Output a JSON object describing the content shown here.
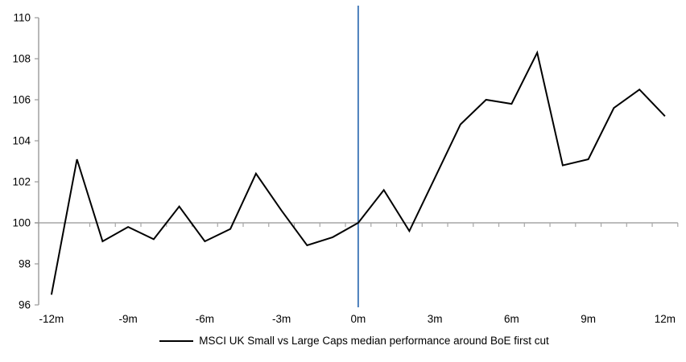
{
  "chart_data": {
    "type": "line",
    "title": "",
    "xlabel": "",
    "ylabel": "",
    "x_months": [
      -12,
      -11,
      -10,
      -9,
      -8,
      -7,
      -6,
      -5,
      -4,
      -3,
      -2,
      -1,
      0,
      1,
      2,
      3,
      4,
      5,
      6,
      7,
      8,
      9,
      10,
      11,
      12
    ],
    "series": [
      {
        "name": "MSCI UK Small vs Large Caps median performance around BoE first cut",
        "values": [
          96.5,
          103.1,
          99.1,
          99.8,
          99.2,
          100.8,
          99.1,
          99.7,
          102.4,
          100.6,
          98.9,
          99.3,
          100.0,
          101.6,
          99.6,
          102.2,
          104.8,
          106.0,
          105.8,
          108.3,
          102.8,
          103.1,
          105.6,
          106.5,
          105.2
        ]
      }
    ],
    "ylim": [
      96,
      110
    ],
    "yticks": [
      96,
      98,
      100,
      102,
      104,
      106,
      108,
      110
    ],
    "xticks": [
      {
        "month": -12,
        "label": "-12m"
      },
      {
        "month": -9,
        "label": "-9m"
      },
      {
        "month": -6,
        "label": "-6m"
      },
      {
        "month": -3,
        "label": "-3m"
      },
      {
        "month": 0,
        "label": "0m"
      },
      {
        "month": 3,
        "label": "3m"
      },
      {
        "month": 6,
        "label": "6m"
      },
      {
        "month": 9,
        "label": "9m"
      },
      {
        "month": 12,
        "label": "12m"
      }
    ],
    "baseline_value": 100,
    "event_line_month": 0,
    "grid": "off",
    "legend_position": "bottom",
    "colors": {
      "series_line": "#000000",
      "event_line": "#4a7ebb",
      "baseline_line": "#a6a6a6",
      "axis_line": "#9a9a9a",
      "tick_text": "#000000"
    }
  }
}
